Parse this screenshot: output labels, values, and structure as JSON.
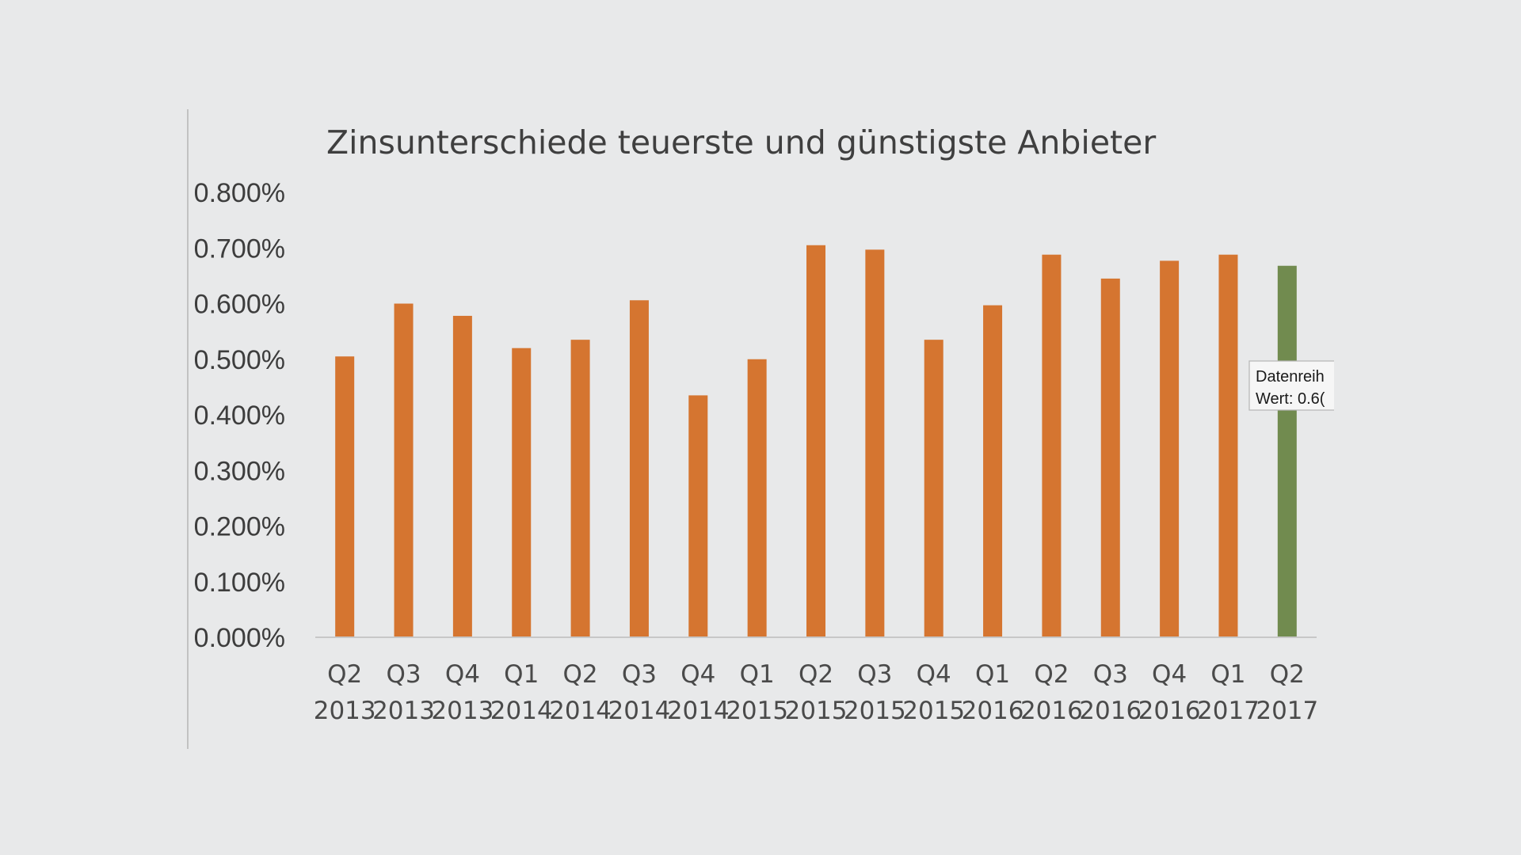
{
  "chart_data": {
    "type": "bar",
    "title": "Zinsunterschiede teuerste und günstigste Anbieter",
    "xlabel": "",
    "ylabel": "",
    "categories": [
      [
        "Q2",
        "2013"
      ],
      [
        "Q3",
        "2013"
      ],
      [
        "Q4",
        "2013"
      ],
      [
        "Q1",
        "2014"
      ],
      [
        "Q2",
        "2014"
      ],
      [
        "Q3",
        "2014"
      ],
      [
        "Q4",
        "2014"
      ],
      [
        "Q1",
        "2015"
      ],
      [
        "Q2",
        "2015"
      ],
      [
        "Q3",
        "2015"
      ],
      [
        "Q4",
        "2015"
      ],
      [
        "Q1",
        "2016"
      ],
      [
        "Q2",
        "2016"
      ],
      [
        "Q3",
        "2016"
      ],
      [
        "Q4",
        "2016"
      ],
      [
        "Q1",
        "2017"
      ],
      [
        "Q2",
        "2017"
      ]
    ],
    "values": [
      0.505,
      0.6,
      0.578,
      0.52,
      0.535,
      0.606,
      0.435,
      0.5,
      0.705,
      0.697,
      0.535,
      0.597,
      0.688,
      0.645,
      0.677,
      0.688,
      0.668
    ],
    "ylim": [
      0,
      0.8
    ],
    "yticks": [
      "0.000%",
      "0.100%",
      "0.200%",
      "0.300%",
      "0.400%",
      "0.500%",
      "0.600%",
      "0.700%",
      "0.800%"
    ],
    "grid": false,
    "legend": "none",
    "colors": {
      "bar": "#d57530",
      "highlight_bar": "#718b4f",
      "axis": "#c7c7c7",
      "title": "#3f3f3f",
      "ytick": "#3d3d3d",
      "xtick": "#4a4a4a"
    },
    "highlight_index": 16,
    "tooltip": {
      "line1": "Datenreih",
      "line2": "Wert: 0.6("
    }
  }
}
